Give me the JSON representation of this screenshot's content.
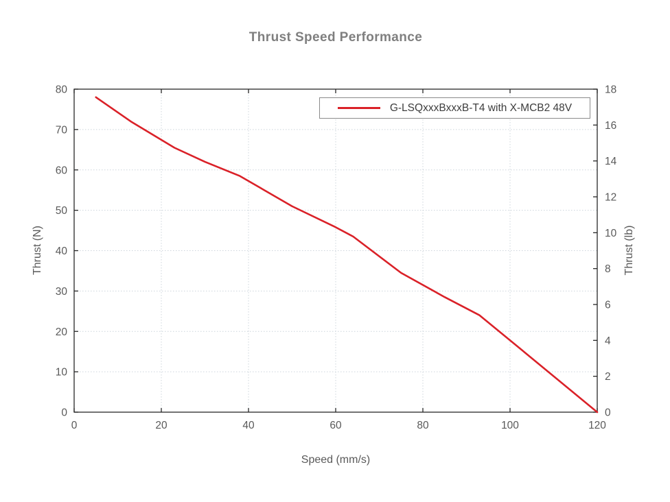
{
  "title": "Thrust Speed Performance",
  "axes": {
    "x_label": "Speed (mm/s)",
    "y_left_label": "Thrust (N)",
    "y_right_label": "Thrust (lb)"
  },
  "legend": {
    "label": "G-LSQxxxBxxxB-T4 with X-MCB2 48V"
  },
  "colors": {
    "series_red": "#da2128",
    "title_gray": "#7f7f7f",
    "axis_text_gray": "#595959",
    "grid_gray": "#ccd4db",
    "frame_dark": "#262626",
    "legend_border": "#8a8a8a",
    "background": "#ffffff"
  },
  "chart_data": {
    "type": "line",
    "title": "Thrust Speed Performance",
    "xlabel": "Speed (mm/s)",
    "ylabel": "Thrust (N)",
    "ylabel_right": "Thrust (lb)",
    "xlim": [
      0,
      120
    ],
    "ylim": [
      0,
      80
    ],
    "ylim_right": [
      0,
      18
    ],
    "xticks": [
      0,
      20,
      40,
      60,
      80,
      100,
      120
    ],
    "yticks": [
      0,
      10,
      20,
      30,
      40,
      50,
      60,
      70,
      80
    ],
    "yticks_right": [
      0,
      2,
      4,
      6,
      8,
      10,
      12,
      14,
      16,
      18
    ],
    "grid": true,
    "legend_position": "top-right",
    "series": [
      {
        "name": "G-LSQxxxBxxxB-T4 with X-MCB2 48V",
        "color": "#da2128",
        "points": [
          [
            5,
            78
          ],
          [
            13,
            72
          ],
          [
            23,
            65.5
          ],
          [
            30,
            62
          ],
          [
            38,
            58.5
          ],
          [
            50,
            51
          ],
          [
            60,
            45.8
          ],
          [
            64,
            43.5
          ],
          [
            75,
            34.5
          ],
          [
            85,
            28.5
          ],
          [
            93,
            24
          ],
          [
            100,
            17.8
          ],
          [
            110,
            8.9
          ],
          [
            120,
            0
          ]
        ]
      }
    ]
  }
}
